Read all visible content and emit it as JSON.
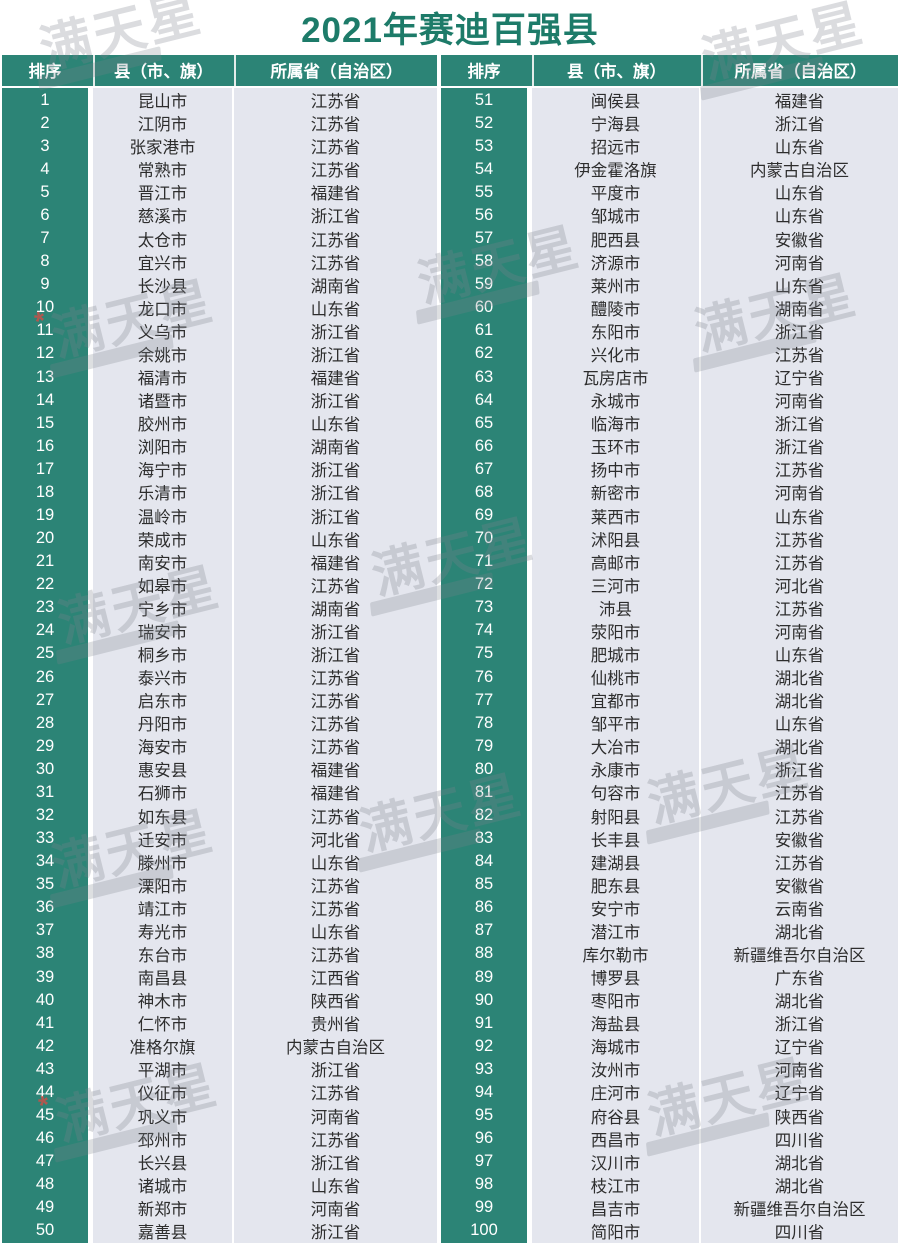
{
  "title": "2021年赛迪百强县",
  "watermark": {
    "text": "满天星",
    "mark": "*"
  },
  "colors": {
    "teal": "#2C8476",
    "title_text": "#1D7B69",
    "row_bg": "#E4E6EE",
    "rank_text": "#FFFFFF",
    "cell_text": "#2D2D2D",
    "watermark_gray": "#7D828C",
    "watermark_red": "#D94A43"
  },
  "table": {
    "headers": {
      "rank": "排序",
      "county": "县（市、旗）",
      "province": "所属省（自治区）"
    },
    "left_rows": [
      [
        "1",
        "昆山市",
        "江苏省"
      ],
      [
        "2",
        "江阴市",
        "江苏省"
      ],
      [
        "3",
        "张家港市",
        "江苏省"
      ],
      [
        "4",
        "常熟市",
        "江苏省"
      ],
      [
        "5",
        "晋江市",
        "福建省"
      ],
      [
        "6",
        "慈溪市",
        "浙江省"
      ],
      [
        "7",
        "太仓市",
        "江苏省"
      ],
      [
        "8",
        "宜兴市",
        "江苏省"
      ],
      [
        "9",
        "长沙县",
        "湖南省"
      ],
      [
        "10",
        "龙口市",
        "山东省"
      ],
      [
        "11",
        "义乌市",
        "浙江省"
      ],
      [
        "12",
        "余姚市",
        "浙江省"
      ],
      [
        "13",
        "福清市",
        "福建省"
      ],
      [
        "14",
        "诸暨市",
        "浙江省"
      ],
      [
        "15",
        "胶州市",
        "山东省"
      ],
      [
        "16",
        "浏阳市",
        "湖南省"
      ],
      [
        "17",
        "海宁市",
        "浙江省"
      ],
      [
        "18",
        "乐清市",
        "浙江省"
      ],
      [
        "19",
        "温岭市",
        "浙江省"
      ],
      [
        "20",
        "荣成市",
        "山东省"
      ],
      [
        "21",
        "南安市",
        "福建省"
      ],
      [
        "22",
        "如皋市",
        "江苏省"
      ],
      [
        "23",
        "宁乡市",
        "湖南省"
      ],
      [
        "24",
        "瑞安市",
        "浙江省"
      ],
      [
        "25",
        "桐乡市",
        "浙江省"
      ],
      [
        "26",
        "泰兴市",
        "江苏省"
      ],
      [
        "27",
        "启东市",
        "江苏省"
      ],
      [
        "28",
        "丹阳市",
        "江苏省"
      ],
      [
        "29",
        "海安市",
        "江苏省"
      ],
      [
        "30",
        "惠安县",
        "福建省"
      ],
      [
        "31",
        "石狮市",
        "福建省"
      ],
      [
        "32",
        "如东县",
        "江苏省"
      ],
      [
        "33",
        "迁安市",
        "河北省"
      ],
      [
        "34",
        "滕州市",
        "山东省"
      ],
      [
        "35",
        "溧阳市",
        "江苏省"
      ],
      [
        "36",
        "靖江市",
        "江苏省"
      ],
      [
        "37",
        "寿光市",
        "山东省"
      ],
      [
        "38",
        "东台市",
        "江苏省"
      ],
      [
        "39",
        "南昌县",
        "江西省"
      ],
      [
        "40",
        "神木市",
        "陕西省"
      ],
      [
        "41",
        "仁怀市",
        "贵州省"
      ],
      [
        "42",
        "准格尔旗",
        "内蒙古自治区"
      ],
      [
        "43",
        "平湖市",
        "浙江省"
      ],
      [
        "44",
        "仪征市",
        "江苏省"
      ],
      [
        "45",
        "巩义市",
        "河南省"
      ],
      [
        "46",
        "邳州市",
        "江苏省"
      ],
      [
        "47",
        "长兴县",
        "浙江省"
      ],
      [
        "48",
        "诸城市",
        "山东省"
      ],
      [
        "49",
        "新郑市",
        "河南省"
      ],
      [
        "50",
        "嘉善县",
        "浙江省"
      ]
    ],
    "right_rows": [
      [
        "51",
        "闽侯县",
        "福建省"
      ],
      [
        "52",
        "宁海县",
        "浙江省"
      ],
      [
        "53",
        "招远市",
        "山东省"
      ],
      [
        "54",
        "伊金霍洛旗",
        "内蒙古自治区"
      ],
      [
        "55",
        "平度市",
        "山东省"
      ],
      [
        "56",
        "邹城市",
        "山东省"
      ],
      [
        "57",
        "肥西县",
        "安徽省"
      ],
      [
        "58",
        "济源市",
        "河南省"
      ],
      [
        "59",
        "莱州市",
        "山东省"
      ],
      [
        "60",
        "醴陵市",
        "湖南省"
      ],
      [
        "61",
        "东阳市",
        "浙江省"
      ],
      [
        "62",
        "兴化市",
        "江苏省"
      ],
      [
        "63",
        "瓦房店市",
        "辽宁省"
      ],
      [
        "64",
        "永城市",
        "河南省"
      ],
      [
        "65",
        "临海市",
        "浙江省"
      ],
      [
        "66",
        "玉环市",
        "浙江省"
      ],
      [
        "67",
        "扬中市",
        "江苏省"
      ],
      [
        "68",
        "新密市",
        "河南省"
      ],
      [
        "69",
        "莱西市",
        "山东省"
      ],
      [
        "70",
        "沭阳县",
        "江苏省"
      ],
      [
        "71",
        "高邮市",
        "江苏省"
      ],
      [
        "72",
        "三河市",
        "河北省"
      ],
      [
        "73",
        "沛县",
        "江苏省"
      ],
      [
        "74",
        "荥阳市",
        "河南省"
      ],
      [
        "75",
        "肥城市",
        "山东省"
      ],
      [
        "76",
        "仙桃市",
        "湖北省"
      ],
      [
        "77",
        "宜都市",
        "湖北省"
      ],
      [
        "78",
        "邹平市",
        "山东省"
      ],
      [
        "79",
        "大冶市",
        "湖北省"
      ],
      [
        "80",
        "永康市",
        "浙江省"
      ],
      [
        "81",
        "句容市",
        "江苏省"
      ],
      [
        "82",
        "射阳县",
        "江苏省"
      ],
      [
        "83",
        "长丰县",
        "安徽省"
      ],
      [
        "84",
        "建湖县",
        "江苏省"
      ],
      [
        "85",
        "肥东县",
        "安徽省"
      ],
      [
        "86",
        "安宁市",
        "云南省"
      ],
      [
        "87",
        "潜江市",
        "湖北省"
      ],
      [
        "88",
        "库尔勒市",
        "新疆维吾尔自治区"
      ],
      [
        "89",
        "博罗县",
        "广东省"
      ],
      [
        "90",
        "枣阳市",
        "湖北省"
      ],
      [
        "91",
        "海盐县",
        "浙江省"
      ],
      [
        "92",
        "海城市",
        "辽宁省"
      ],
      [
        "93",
        "汝州市",
        "河南省"
      ],
      [
        "94",
        "庄河市",
        "辽宁省"
      ],
      [
        "95",
        "府谷县",
        "陕西省"
      ],
      [
        "96",
        "西昌市",
        "四川省"
      ],
      [
        "97",
        "汉川市",
        "湖北省"
      ],
      [
        "98",
        "枝江市",
        "湖北省"
      ],
      [
        "99",
        "昌吉市",
        "新疆维吾尔自治区"
      ],
      [
        "100",
        "简阳市",
        "四川省"
      ]
    ]
  }
}
